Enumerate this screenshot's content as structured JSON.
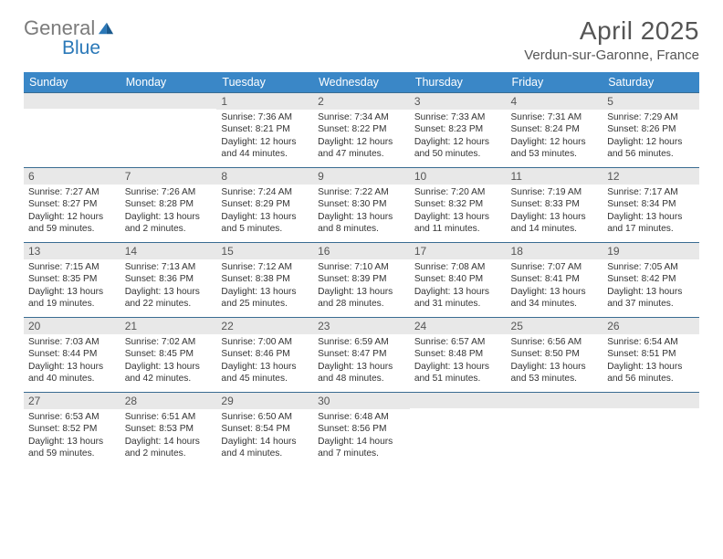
{
  "logo": {
    "part1": "General",
    "part2": "Blue"
  },
  "title": "April 2025",
  "location": "Verdun-sur-Garonne, France",
  "colors": {
    "header_bg": "#3a87c7",
    "header_text": "#ffffff",
    "daynum_bg": "#e8e8e8",
    "daynum_border": "#3a6c92",
    "text": "#333333",
    "title": "#555555"
  },
  "weekdays": [
    "Sunday",
    "Monday",
    "Tuesday",
    "Wednesday",
    "Thursday",
    "Friday",
    "Saturday"
  ],
  "weeks": [
    [
      {
        "n": "",
        "text": ""
      },
      {
        "n": "",
        "text": ""
      },
      {
        "n": "1",
        "text": "Sunrise: 7:36 AM\nSunset: 8:21 PM\nDaylight: 12 hours and 44 minutes."
      },
      {
        "n": "2",
        "text": "Sunrise: 7:34 AM\nSunset: 8:22 PM\nDaylight: 12 hours and 47 minutes."
      },
      {
        "n": "3",
        "text": "Sunrise: 7:33 AM\nSunset: 8:23 PM\nDaylight: 12 hours and 50 minutes."
      },
      {
        "n": "4",
        "text": "Sunrise: 7:31 AM\nSunset: 8:24 PM\nDaylight: 12 hours and 53 minutes."
      },
      {
        "n": "5",
        "text": "Sunrise: 7:29 AM\nSunset: 8:26 PM\nDaylight: 12 hours and 56 minutes."
      }
    ],
    [
      {
        "n": "6",
        "text": "Sunrise: 7:27 AM\nSunset: 8:27 PM\nDaylight: 12 hours and 59 minutes."
      },
      {
        "n": "7",
        "text": "Sunrise: 7:26 AM\nSunset: 8:28 PM\nDaylight: 13 hours and 2 minutes."
      },
      {
        "n": "8",
        "text": "Sunrise: 7:24 AM\nSunset: 8:29 PM\nDaylight: 13 hours and 5 minutes."
      },
      {
        "n": "9",
        "text": "Sunrise: 7:22 AM\nSunset: 8:30 PM\nDaylight: 13 hours and 8 minutes."
      },
      {
        "n": "10",
        "text": "Sunrise: 7:20 AM\nSunset: 8:32 PM\nDaylight: 13 hours and 11 minutes."
      },
      {
        "n": "11",
        "text": "Sunrise: 7:19 AM\nSunset: 8:33 PM\nDaylight: 13 hours and 14 minutes."
      },
      {
        "n": "12",
        "text": "Sunrise: 7:17 AM\nSunset: 8:34 PM\nDaylight: 13 hours and 17 minutes."
      }
    ],
    [
      {
        "n": "13",
        "text": "Sunrise: 7:15 AM\nSunset: 8:35 PM\nDaylight: 13 hours and 19 minutes."
      },
      {
        "n": "14",
        "text": "Sunrise: 7:13 AM\nSunset: 8:36 PM\nDaylight: 13 hours and 22 minutes."
      },
      {
        "n": "15",
        "text": "Sunrise: 7:12 AM\nSunset: 8:38 PM\nDaylight: 13 hours and 25 minutes."
      },
      {
        "n": "16",
        "text": "Sunrise: 7:10 AM\nSunset: 8:39 PM\nDaylight: 13 hours and 28 minutes."
      },
      {
        "n": "17",
        "text": "Sunrise: 7:08 AM\nSunset: 8:40 PM\nDaylight: 13 hours and 31 minutes."
      },
      {
        "n": "18",
        "text": "Sunrise: 7:07 AM\nSunset: 8:41 PM\nDaylight: 13 hours and 34 minutes."
      },
      {
        "n": "19",
        "text": "Sunrise: 7:05 AM\nSunset: 8:42 PM\nDaylight: 13 hours and 37 minutes."
      }
    ],
    [
      {
        "n": "20",
        "text": "Sunrise: 7:03 AM\nSunset: 8:44 PM\nDaylight: 13 hours and 40 minutes."
      },
      {
        "n": "21",
        "text": "Sunrise: 7:02 AM\nSunset: 8:45 PM\nDaylight: 13 hours and 42 minutes."
      },
      {
        "n": "22",
        "text": "Sunrise: 7:00 AM\nSunset: 8:46 PM\nDaylight: 13 hours and 45 minutes."
      },
      {
        "n": "23",
        "text": "Sunrise: 6:59 AM\nSunset: 8:47 PM\nDaylight: 13 hours and 48 minutes."
      },
      {
        "n": "24",
        "text": "Sunrise: 6:57 AM\nSunset: 8:48 PM\nDaylight: 13 hours and 51 minutes."
      },
      {
        "n": "25",
        "text": "Sunrise: 6:56 AM\nSunset: 8:50 PM\nDaylight: 13 hours and 53 minutes."
      },
      {
        "n": "26",
        "text": "Sunrise: 6:54 AM\nSunset: 8:51 PM\nDaylight: 13 hours and 56 minutes."
      }
    ],
    [
      {
        "n": "27",
        "text": "Sunrise: 6:53 AM\nSunset: 8:52 PM\nDaylight: 13 hours and 59 minutes."
      },
      {
        "n": "28",
        "text": "Sunrise: 6:51 AM\nSunset: 8:53 PM\nDaylight: 14 hours and 2 minutes."
      },
      {
        "n": "29",
        "text": "Sunrise: 6:50 AM\nSunset: 8:54 PM\nDaylight: 14 hours and 4 minutes."
      },
      {
        "n": "30",
        "text": "Sunrise: 6:48 AM\nSunset: 8:56 PM\nDaylight: 14 hours and 7 minutes."
      },
      {
        "n": "",
        "text": ""
      },
      {
        "n": "",
        "text": ""
      },
      {
        "n": "",
        "text": ""
      }
    ]
  ]
}
